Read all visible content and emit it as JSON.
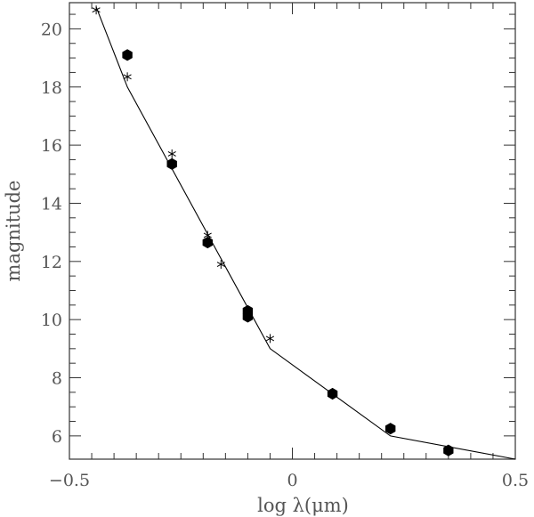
{
  "chart_data": {
    "type": "scatter",
    "title": "",
    "xlabel": "log λ(μm)",
    "ylabel": "magnitude",
    "xlim": [
      -0.5,
      0.5
    ],
    "ylim": [
      20.9,
      5.2
    ],
    "y_inverted": true,
    "grid": false,
    "x_ticks": [
      {
        "value": -0.5,
        "label": "−0.5"
      },
      {
        "value": 0,
        "label": "0"
      },
      {
        "value": 0.5,
        "label": "0.5"
      }
    ],
    "y_ticks": [
      {
        "value": 6,
        "label": "6"
      },
      {
        "value": 8,
        "label": "8"
      },
      {
        "value": 10,
        "label": "10"
      },
      {
        "value": 12,
        "label": "12"
      },
      {
        "value": 14,
        "label": "14"
      },
      {
        "value": 16,
        "label": "16"
      },
      {
        "value": 18,
        "label": "18"
      },
      {
        "value": 20,
        "label": "20"
      }
    ],
    "series": [
      {
        "marker": "line",
        "color": "#000000",
        "points": [
          [
            -0.44,
            20.75
          ],
          [
            -0.37,
            18.0
          ],
          [
            -0.05,
            9.0
          ],
          [
            0.22,
            6.0
          ],
          [
            0.5,
            5.2
          ]
        ]
      },
      {
        "marker": "filled-hexagon",
        "color": "#000000",
        "points": [
          [
            -0.37,
            19.1
          ],
          [
            -0.27,
            15.35
          ],
          [
            -0.19,
            12.65
          ],
          [
            -0.1,
            10.1
          ],
          [
            -0.1,
            10.3
          ],
          [
            0.09,
            7.45
          ],
          [
            0.22,
            6.25
          ],
          [
            0.35,
            5.5
          ]
        ]
      },
      {
        "marker": "asterisk",
        "color": "#000000",
        "points": [
          [
            -0.44,
            20.65
          ],
          [
            -0.37,
            18.35
          ],
          [
            -0.27,
            15.7
          ],
          [
            -0.19,
            12.9
          ],
          [
            -0.16,
            11.9
          ],
          [
            -0.05,
            9.35
          ]
        ]
      }
    ]
  }
}
